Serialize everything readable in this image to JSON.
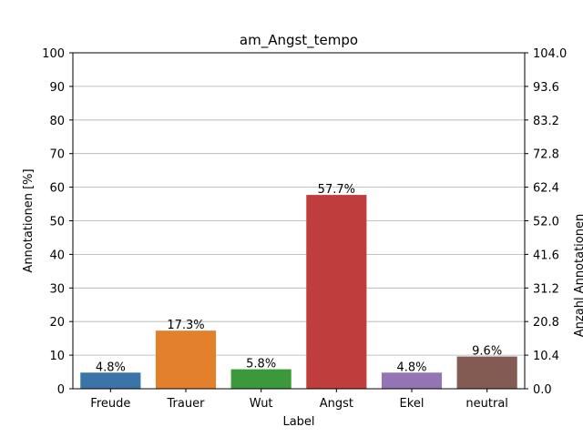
{
  "chart_data": {
    "type": "bar",
    "title": "am_Angst_tempo",
    "xlabel": "Label",
    "ylabel": "Annotationen [%]",
    "ylabel_right": "Anzahl Annotationen",
    "categories": [
      "Freude",
      "Trauer",
      "Wut",
      "Angst",
      "Ekel",
      "neutral"
    ],
    "values": [
      4.8,
      17.3,
      5.8,
      57.7,
      4.8,
      9.6
    ],
    "value_labels": [
      "4.8%",
      "17.3%",
      "5.8%",
      "57.7%",
      "4.8%",
      "9.6%"
    ],
    "colors": [
      "#3a74a8",
      "#e3802c",
      "#3b983b",
      "#c03d3e",
      "#9375b5",
      "#845b53"
    ],
    "ylim": [
      0,
      100
    ],
    "yticks": [
      "0",
      "10",
      "20",
      "30",
      "40",
      "50",
      "60",
      "70",
      "80",
      "90",
      "100"
    ],
    "ylim_right": [
      0,
      104
    ],
    "yticks_right": [
      "0.0",
      "10.4",
      "20.8",
      "31.2",
      "41.6",
      "52.0",
      "62.4",
      "72.8",
      "83.2",
      "93.6",
      "104.0"
    ],
    "grid": "horizontal"
  }
}
